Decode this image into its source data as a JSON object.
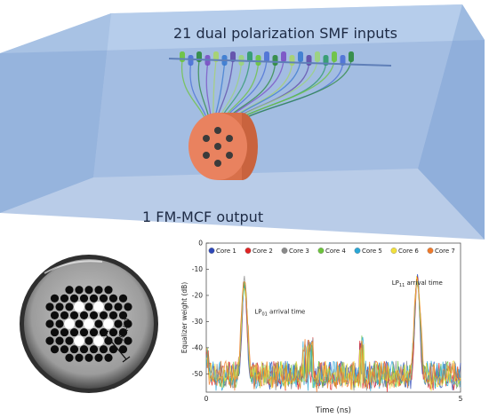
{
  "schematic": {
    "top_label": "21 dual polarization SMF inputs",
    "bottom_label": "1 FM-MCF output",
    "colors": {
      "box_back": "#c7d8ee",
      "box_front": "#7fa3d6",
      "box_top": "#b3cbea",
      "box_side": "#9ab7df",
      "fiber_cap": "#e9825f",
      "fiber_core": "#3b3b3b"
    }
  },
  "photo": {
    "scale_label": "40 μm"
  },
  "chart_data": {
    "type": "line",
    "title": "",
    "xlabel": "Time (ns)",
    "ylabel": "Equalizer weight (dB)",
    "xlim": [
      0,
      5
    ],
    "ylim": [
      -57,
      0
    ],
    "xticks": [
      "0",
      "5"
    ],
    "yticks": [
      "0",
      "-10",
      "-20",
      "-30",
      "-40",
      "-50"
    ],
    "legend_position": "top",
    "series": [
      {
        "name": "Core 1",
        "color": "#2e48b8"
      },
      {
        "name": "Core 2",
        "color": "#e02424"
      },
      {
        "name": "Core 3",
        "color": "#8a8a8a"
      },
      {
        "name": "Core 4",
        "color": "#6cc43c"
      },
      {
        "name": "Core 5",
        "color": "#2aa7d6"
      },
      {
        "name": "Core 6",
        "color": "#f2e03c"
      },
      {
        "name": "Core 7",
        "color": "#f07a2a"
      }
    ],
    "peaks": [
      {
        "x": 0.75,
        "y": -12
      },
      {
        "x": 4.15,
        "y": -11
      }
    ],
    "noise_floor": -52,
    "annotations": [
      {
        "base": "LP",
        "sub": "01",
        "rest": " arrival time",
        "x": 0.95,
        "y": -27
      },
      {
        "base": "LP",
        "sub": "11",
        "rest": " arrival time",
        "x": 3.65,
        "y": -16
      }
    ]
  }
}
